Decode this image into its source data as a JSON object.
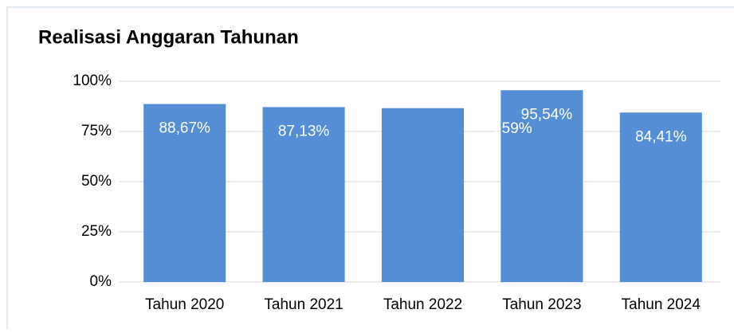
{
  "chart_data": {
    "type": "bar",
    "title": "Realisasi Anggaran Tahunan",
    "categories": [
      "Tahun 2020",
      "Tahun 2021",
      "Tahun 2022",
      "Tahun 2023",
      "Tahun 2024"
    ],
    "values": [
      88.67,
      87.13,
      86.59,
      95.54,
      84.41
    ],
    "value_labels": [
      "88,67%",
      "87,13%",
      "86,59%",
      "95,54%",
      "84,41%"
    ],
    "color": "#558ed5",
    "ylim": [
      0,
      100
    ],
    "yticks": [
      {
        "value": 0,
        "label": "0%"
      },
      {
        "value": 25,
        "label": "25%"
      },
      {
        "value": 50,
        "label": "50%"
      },
      {
        "value": 75,
        "label": "75%"
      },
      {
        "value": 100,
        "label": "100%"
      }
    ],
    "grid": true
  }
}
